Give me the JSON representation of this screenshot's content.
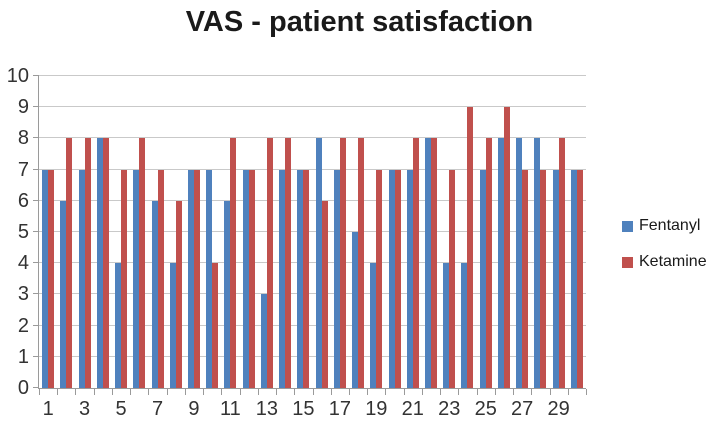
{
  "chart_data": {
    "type": "bar",
    "title": "VAS - patient satisfaction",
    "categories": [
      1,
      2,
      3,
      4,
      5,
      6,
      7,
      8,
      9,
      10,
      11,
      12,
      13,
      14,
      15,
      16,
      17,
      18,
      19,
      20,
      21,
      22,
      23,
      24,
      25,
      26,
      27,
      28,
      29,
      30
    ],
    "x_tick_labels": [
      "1",
      "3",
      "5",
      "7",
      "9",
      "11",
      "13",
      "15",
      "17",
      "19",
      "21",
      "23",
      "25",
      "27",
      "29"
    ],
    "series": [
      {
        "name": "Fentanyl",
        "color": "#4F81BD",
        "values": [
          7,
          6,
          7,
          8,
          4,
          7,
          6,
          4,
          7,
          7,
          6,
          7,
          3,
          7,
          7,
          8,
          7,
          5,
          4,
          7,
          7,
          8,
          4,
          4,
          7,
          8,
          8,
          8,
          7,
          7
        ]
      },
      {
        "name": "Ketamine",
        "color": "#C0504D",
        "values": [
          7,
          8,
          8,
          8,
          7,
          8,
          7,
          6,
          7,
          4,
          8,
          7,
          8,
          8,
          7,
          6,
          8,
          8,
          7,
          7,
          8,
          8,
          7,
          9,
          8,
          9,
          7,
          7,
          8,
          7
        ]
      }
    ],
    "xlabel": "",
    "ylabel": "",
    "ylim": [
      0,
      10
    ],
    "y_ticks": [
      0,
      1,
      2,
      3,
      4,
      5,
      6,
      7,
      8,
      9,
      10
    ],
    "grid": true,
    "legend_position": "right"
  },
  "colors": {
    "fentanyl": "#4F81BD",
    "ketamine": "#C0504D",
    "gridline": "#c9c9c9",
    "axis": "#9a9a9a",
    "axis_text": "#333333",
    "title_text": "#1a1a1a",
    "background": "#ffffff"
  }
}
